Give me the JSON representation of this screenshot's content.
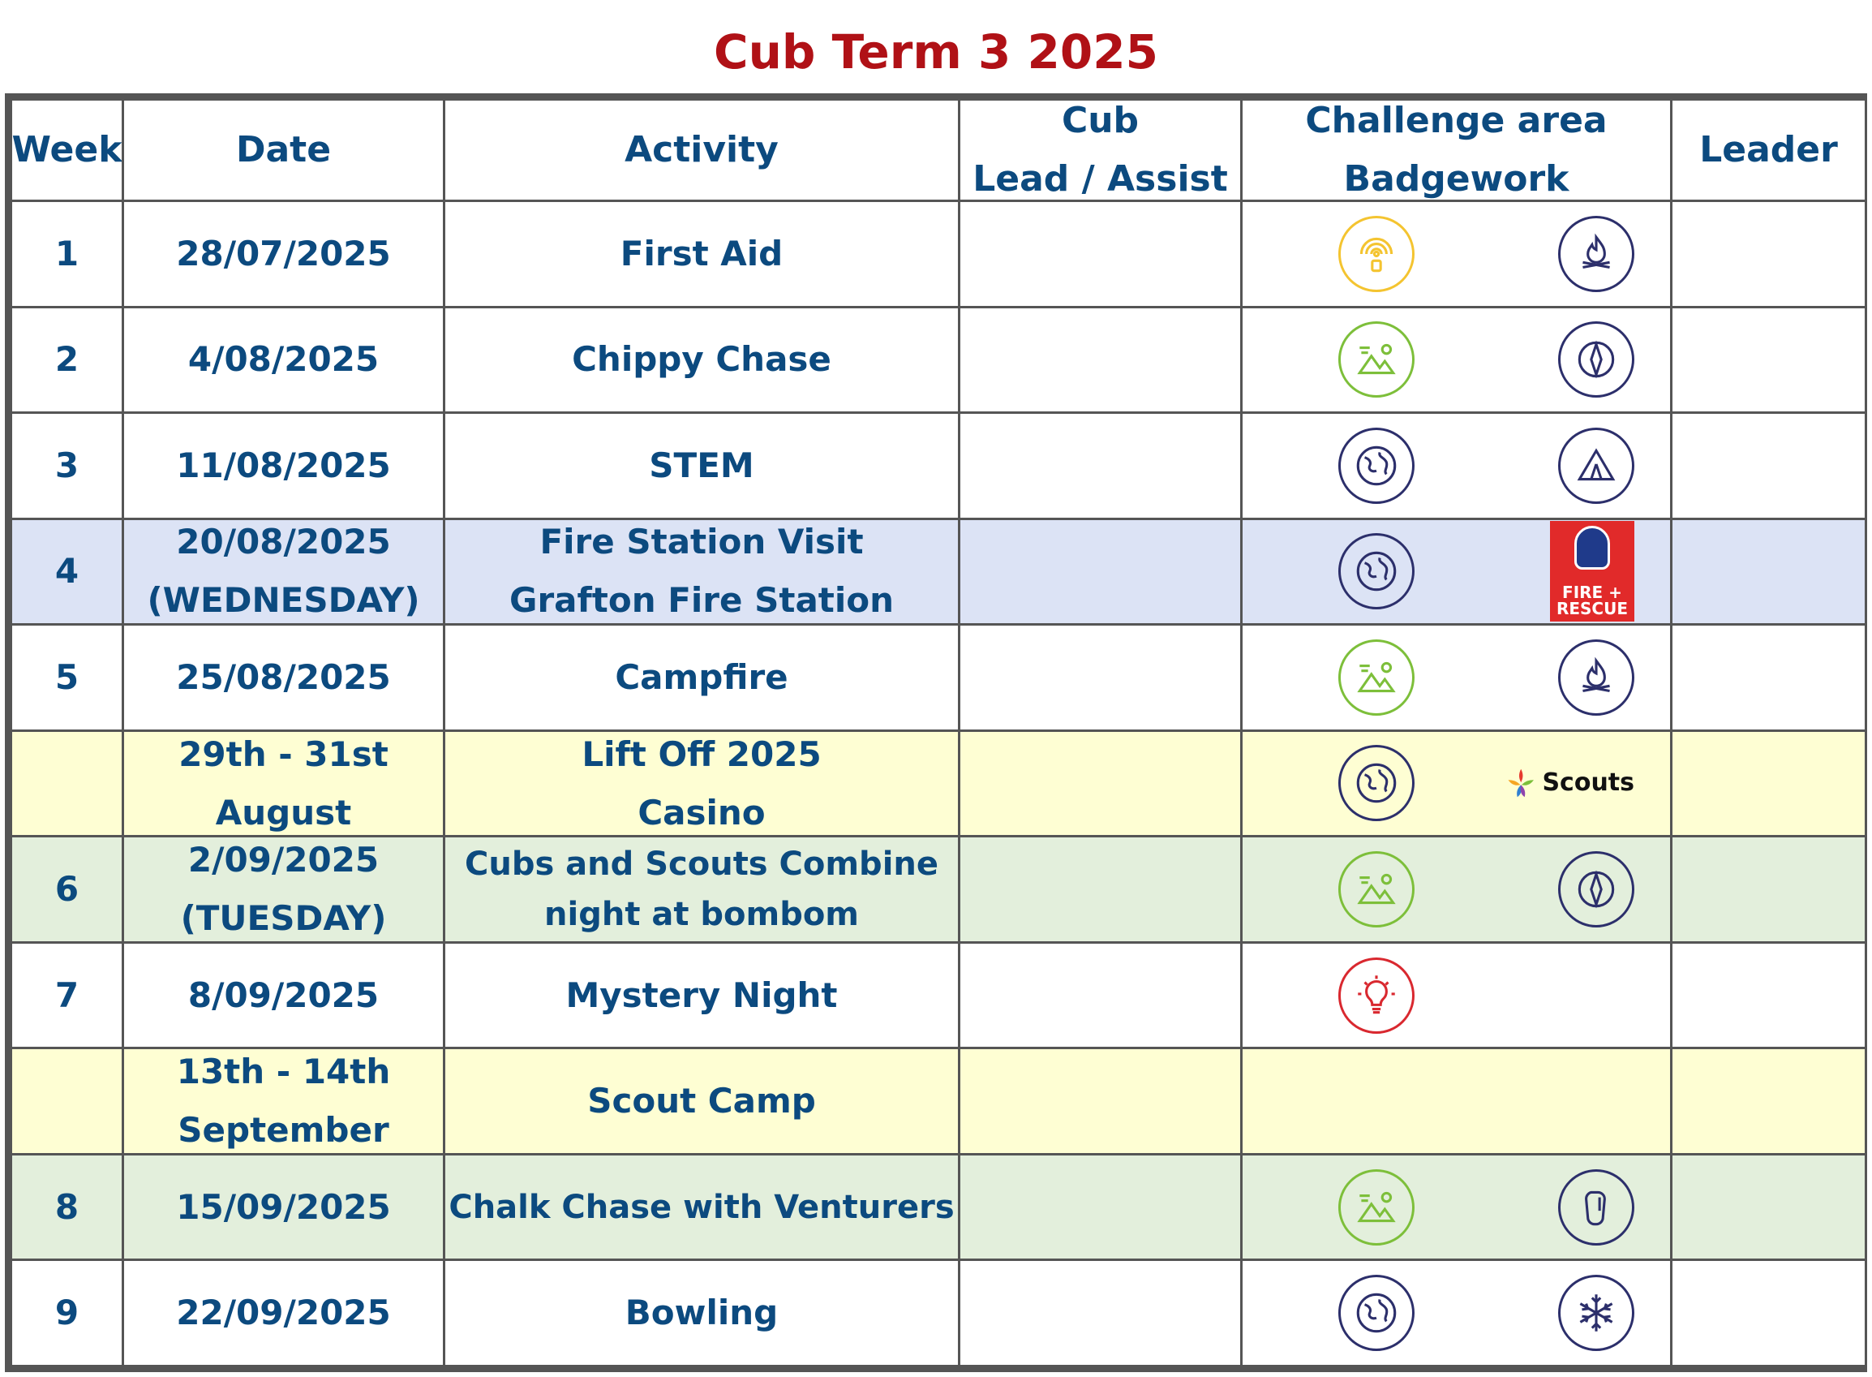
{
  "title": "Cub Term 3 2025",
  "headers": {
    "week": "Week",
    "date": "Date",
    "activity": "Activity",
    "cub_line1": "Cub",
    "cub_line2": "Lead / Assist",
    "challenge_line1": "Challenge area",
    "challenge_line2": "Badgework",
    "leader": "Leader"
  },
  "colors": {
    "title": "#b01116",
    "text": "#0c4a7f",
    "highlight_blue": "#dce3f5",
    "highlight_yellow": "#fefed3",
    "highlight_green": "#e3efdc"
  },
  "rows": [
    {
      "week": "1",
      "date": [
        "28/07/2025"
      ],
      "activity": [
        "First Aid"
      ],
      "badges": [
        "signal-icon",
        "campfire-icon"
      ]
    },
    {
      "week": "2",
      "date": [
        "4/08/2025"
      ],
      "activity": [
        "Chippy Chase"
      ],
      "badges": [
        "outdoors-icon",
        "compass-icon"
      ]
    },
    {
      "week": "3",
      "date": [
        "11/08/2025"
      ],
      "activity": [
        "STEM"
      ],
      "badges": [
        "globe-icon",
        "tent-icon"
      ]
    },
    {
      "week": "4",
      "date": [
        "20/08/2025",
        "(WEDNESDAY)"
      ],
      "activity": [
        "Fire Station Visit",
        "Grafton Fire Station"
      ],
      "badges": [
        "globe-icon",
        "fire-rescue-logo"
      ],
      "fire_logo_text": [
        "FIRE +",
        "RESCUE"
      ]
    },
    {
      "week": "5",
      "date": [
        "25/08/2025"
      ],
      "activity": [
        "Campfire"
      ],
      "badges": [
        "outdoors-icon",
        "campfire-icon"
      ]
    },
    {
      "week": "",
      "date": [
        "29th - 31st",
        "August"
      ],
      "activity": [
        "Lift Off 2025",
        "Casino"
      ],
      "badges": [
        "globe-icon",
        "scouts-logo"
      ],
      "scouts_logo_text": "Scouts"
    },
    {
      "week": "6",
      "date": [
        "2/09/2025",
        "(TUESDAY)"
      ],
      "activity": [
        "Cubs and Scouts Combine",
        "night at bombom"
      ],
      "badges": [
        "outdoors-icon",
        "compass-icon"
      ]
    },
    {
      "week": "7",
      "date": [
        "8/09/2025"
      ],
      "activity": [
        "Mystery Night"
      ],
      "badges": [
        "lightbulb-icon"
      ]
    },
    {
      "week": "",
      "date": [
        "13th - 14th",
        "September"
      ],
      "activity": [
        "Scout Camp"
      ],
      "badges": []
    },
    {
      "week": "8",
      "date": [
        "15/09/2025"
      ],
      "activity": [
        "Chalk Chase with Venturers"
      ],
      "badges": [
        "outdoors-icon",
        "carabiner-icon"
      ]
    },
    {
      "week": "9",
      "date": [
        "22/09/2025"
      ],
      "activity": [
        "Bowling"
      ],
      "badges": [
        "globe-icon",
        "snowflake-icon"
      ]
    }
  ]
}
